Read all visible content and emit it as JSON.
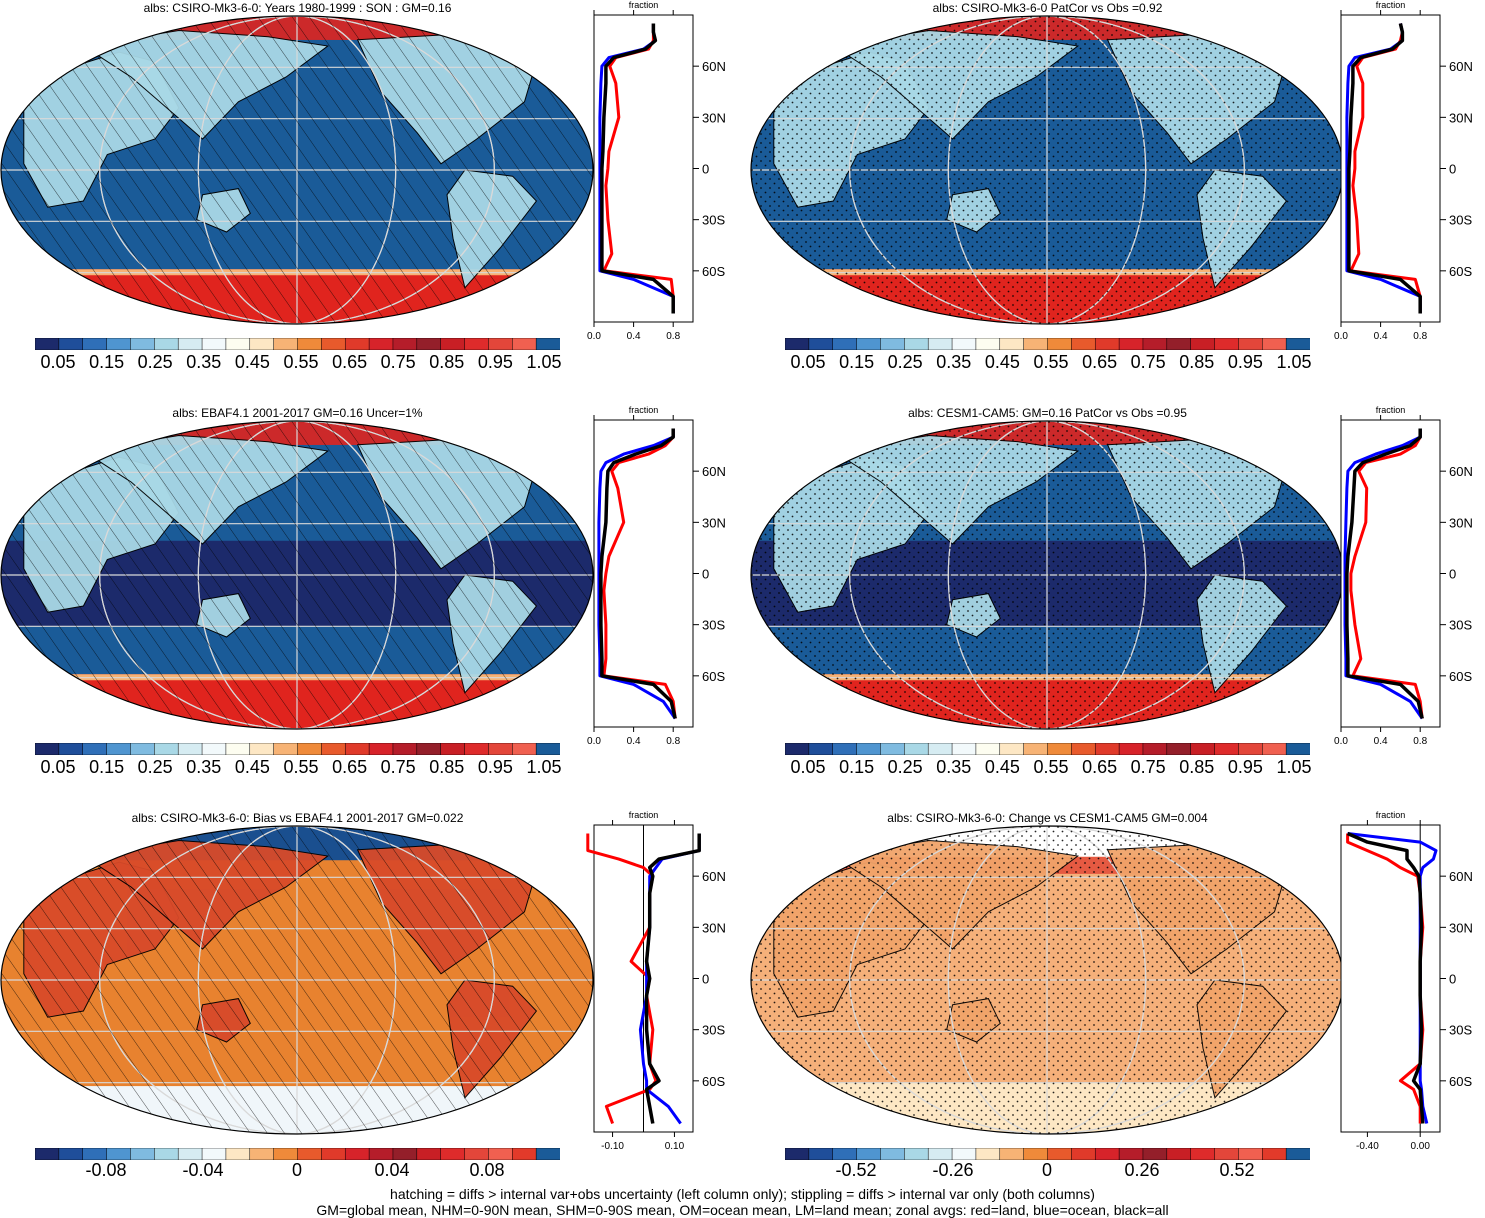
{
  "panels": [
    {
      "title": "albs: CSIRO-Mk3-6-0: Years 1980-1999 : SON : GM=0.16",
      "kind": "abs",
      "pattern": "hatch"
    },
    {
      "title": "albs: CSIRO-Mk3-6-0 PatCor vs Obs =0.92",
      "kind": "abs",
      "pattern": "stipple"
    },
    {
      "title": "albs: EBAF4.1 2001-2017 GM=0.16 Uncer=1%",
      "kind": "abs-obs",
      "pattern": "hatch"
    },
    {
      "title": "albs: CESM1-CAM5: GM=0.16 PatCor vs Obs =0.95",
      "kind": "abs-obs",
      "pattern": "stipple"
    },
    {
      "title": "albs: CSIRO-Mk3-6-0: Bias vs EBAF4.1 2001-2017  GM=0.022",
      "kind": "bias",
      "pattern": "hatch"
    },
    {
      "title": "albs: CSIRO-Mk3-6-0: Change vs CESM1-CAM5 GM=0.004",
      "kind": "change",
      "pattern": "stipple"
    }
  ],
  "colorbars": {
    "abs": {
      "labels": [
        "0.05",
        "0.15",
        "0.25",
        "0.35",
        "0.45",
        "0.55",
        "0.65",
        "0.75",
        "0.85",
        "0.95",
        "1.05"
      ]
    },
    "bias": {
      "labels": [
        "-0.08",
        "-0.04",
        "0",
        "0.04",
        "0.08"
      ]
    },
    "change": {
      "labels": [
        "-0.52",
        "-0.26",
        "0",
        "0.26",
        "0.52"
      ]
    }
  },
  "colors": {
    "abs_palette": [
      "#1c2a6b",
      "#1f4e9a",
      "#2f6fb8",
      "#4f95d0",
      "#7fbbe0",
      "#a9d8e6",
      "#d6ecf2",
      "#f2f9fb",
      "#fdfdf0",
      "#fde7c4",
      "#f7b375",
      "#ef8a3a",
      "#e85a2c",
      "#e03a2a",
      "#d7232a",
      "#b51d2a",
      "#941f2a",
      "#c81f25",
      "#de2b2b",
      "#e3463a",
      "#f06050",
      "#1a5b98"
    ],
    "ocean": "#1a5b98",
    "ocean_deep": "#1c2a6b",
    "land_light": "#a9d8e6",
    "ice": "#e0241e",
    "bias_bg": "#e8822f",
    "change_bg": "#f5b07a",
    "red_curve": "#ff0000",
    "blue_curve": "#0000ff",
    "black_curve": "#000000"
  },
  "zonal": {
    "axis_label": "fraction",
    "lat_ticks": [
      "60N",
      "30N",
      "0",
      "30S",
      "60S"
    ],
    "abs_x_ticks": [
      "0.0",
      "0.4",
      "0.8"
    ],
    "bias_x_ticks": [
      "-0.10",
      "0.10"
    ],
    "change_x_ticks": [
      "-0.40",
      "0.00"
    ]
  },
  "chart_data": [
    {
      "type": "line",
      "title": "",
      "xlabel": "fraction",
      "ylabel": "",
      "xlim": [
        0,
        1
      ],
      "ylim": [
        -90,
        90
      ],
      "y": [
        -85,
        -75,
        -65,
        -60,
        -50,
        -30,
        -10,
        0,
        10,
        30,
        50,
        60,
        65,
        70,
        75,
        80,
        85
      ],
      "series": [
        {
          "values": [
            0.8,
            0.8,
            0.78,
            0.1,
            0.18,
            0.14,
            0.12,
            0.14,
            0.15,
            0.25,
            0.22,
            0.16,
            0.22,
            0.55,
            0.6,
            0.6,
            0.6
          ]
        },
        {
          "values": [
            0.8,
            0.8,
            0.4,
            0.06,
            0.06,
            0.06,
            0.06,
            0.06,
            0.06,
            0.06,
            0.07,
            0.08,
            0.15,
            0.5,
            0.62,
            0.6,
            0.6
          ]
        },
        {
          "values": [
            0.8,
            0.8,
            0.6,
            0.08,
            0.08,
            0.08,
            0.08,
            0.08,
            0.09,
            0.1,
            0.12,
            0.12,
            0.2,
            0.52,
            0.62,
            0.6,
            0.6
          ]
        }
      ]
    },
    {
      "type": "line",
      "title": "",
      "xlabel": "fraction",
      "ylabel": "",
      "xlim": [
        0,
        1
      ],
      "ylim": [
        -90,
        90
      ],
      "y": [
        -85,
        -75,
        -65,
        -60,
        -50,
        -30,
        -10,
        0,
        10,
        30,
        50,
        60,
        65,
        70,
        75,
        80,
        85
      ],
      "series": [
        {
          "values": [
            0.8,
            0.8,
            0.75,
            0.1,
            0.18,
            0.16,
            0.12,
            0.14,
            0.14,
            0.22,
            0.22,
            0.16,
            0.22,
            0.55,
            0.6,
            0.62,
            0.6
          ]
        },
        {
          "values": [
            0.8,
            0.8,
            0.4,
            0.06,
            0.06,
            0.06,
            0.06,
            0.06,
            0.06,
            0.06,
            0.07,
            0.08,
            0.14,
            0.5,
            0.62,
            0.62,
            0.6
          ]
        },
        {
          "values": [
            0.8,
            0.8,
            0.6,
            0.08,
            0.08,
            0.08,
            0.08,
            0.08,
            0.09,
            0.1,
            0.12,
            0.12,
            0.2,
            0.52,
            0.62,
            0.62,
            0.6
          ]
        }
      ]
    },
    {
      "type": "line",
      "title": "",
      "xlabel": "fraction",
      "ylabel": "",
      "xlim": [
        0,
        1
      ],
      "ylim": [
        -90,
        90
      ],
      "y": [
        -85,
        -75,
        -65,
        -60,
        -50,
        -30,
        -10,
        0,
        10,
        30,
        50,
        60,
        65,
        70,
        75,
        80,
        85
      ],
      "series": [
        {
          "values": [
            0.82,
            0.8,
            0.72,
            0.1,
            0.12,
            0.12,
            0.1,
            0.12,
            0.15,
            0.3,
            0.24,
            0.18,
            0.25,
            0.55,
            0.72,
            0.8,
            0.8
          ]
        },
        {
          "values": [
            0.82,
            0.7,
            0.4,
            0.06,
            0.06,
            0.05,
            0.05,
            0.05,
            0.05,
            0.05,
            0.06,
            0.07,
            0.12,
            0.3,
            0.6,
            0.8,
            0.8
          ]
        },
        {
          "values": [
            0.82,
            0.78,
            0.6,
            0.08,
            0.08,
            0.07,
            0.07,
            0.07,
            0.08,
            0.12,
            0.13,
            0.14,
            0.2,
            0.42,
            0.68,
            0.8,
            0.8
          ]
        }
      ]
    },
    {
      "type": "line",
      "title": "",
      "xlabel": "fraction",
      "ylabel": "",
      "xlim": [
        0,
        1
      ],
      "ylim": [
        -90,
        90
      ],
      "y": [
        -85,
        -75,
        -65,
        -60,
        -50,
        -30,
        -10,
        0,
        10,
        30,
        50,
        60,
        65,
        70,
        75,
        80,
        85
      ],
      "series": [
        {
          "values": [
            0.82,
            0.8,
            0.75,
            0.12,
            0.2,
            0.14,
            0.1,
            0.1,
            0.14,
            0.25,
            0.26,
            0.18,
            0.25,
            0.6,
            0.75,
            0.8,
            0.8
          ]
        },
        {
          "values": [
            0.82,
            0.7,
            0.4,
            0.05,
            0.05,
            0.04,
            0.04,
            0.04,
            0.04,
            0.05,
            0.06,
            0.07,
            0.14,
            0.35,
            0.62,
            0.8,
            0.8
          ]
        },
        {
          "values": [
            0.82,
            0.78,
            0.6,
            0.07,
            0.07,
            0.06,
            0.06,
            0.06,
            0.07,
            0.11,
            0.13,
            0.14,
            0.22,
            0.45,
            0.7,
            0.8,
            0.8
          ]
        }
      ]
    },
    {
      "type": "line",
      "title": "",
      "xlabel": "fraction",
      "ylabel": "",
      "xlim": [
        -0.16,
        0.16
      ],
      "ylim": [
        -90,
        90
      ],
      "y": [
        -85,
        -75,
        -65,
        -60,
        -50,
        -30,
        -10,
        0,
        10,
        30,
        50,
        60,
        65,
        70,
        75,
        80,
        85
      ],
      "series": [
        {
          "values": [
            -0.1,
            -0.12,
            0.02,
            0.04,
            0.02,
            0.03,
            0.01,
            0.02,
            -0.04,
            0.02,
            0.02,
            0.03,
            0.0,
            -0.08,
            -0.18,
            -0.18,
            -0.18
          ]
        },
        {
          "values": [
            0.12,
            0.08,
            0.01,
            0.01,
            0.0,
            -0.01,
            0.01,
            0.01,
            0.01,
            0.02,
            0.02,
            0.02,
            0.04,
            0.06,
            0.18,
            0.18,
            0.18
          ]
        },
        {
          "values": [
            0.03,
            0.02,
            0.01,
            0.05,
            0.02,
            0.01,
            0.01,
            0.02,
            0.01,
            0.02,
            0.02,
            0.03,
            0.02,
            0.05,
            0.18,
            0.18,
            0.18
          ]
        }
      ]
    },
    {
      "type": "line",
      "title": "",
      "xlabel": "fraction",
      "ylabel": "",
      "xlim": [
        -0.6,
        0.15
      ],
      "ylim": [
        -90,
        90
      ],
      "y": [
        -85,
        -75,
        -65,
        -60,
        -50,
        -30,
        -10,
        0,
        10,
        30,
        50,
        60,
        65,
        70,
        75,
        80,
        85
      ],
      "series": [
        {
          "values": [
            0.0,
            0.0,
            -0.05,
            -0.15,
            0.0,
            0.02,
            0.0,
            0.0,
            0.0,
            0.02,
            0.0,
            -0.02,
            -0.15,
            -0.25,
            -0.4,
            -0.55,
            -0.55
          ]
        },
        {
          "values": [
            0.05,
            0.02,
            0.01,
            0.0,
            0.0,
            0.0,
            0.0,
            0.0,
            0.0,
            0.0,
            0.0,
            0.0,
            0.02,
            0.1,
            0.12,
            0.0,
            -0.55
          ]
        },
        {
          "values": [
            0.02,
            0.01,
            0.0,
            -0.05,
            0.0,
            0.01,
            0.0,
            0.0,
            0.0,
            0.01,
            0.0,
            -0.01,
            -0.05,
            -0.1,
            -0.1,
            -0.4,
            -0.55
          ]
        }
      ]
    }
  ],
  "footer": {
    "line1": "hatching = diffs > internal var+obs uncertainty (left column only); stippling = diffs > internal var only (both columns)",
    "line2": "GM=global mean, NHM=0-90N mean, SHM=0-90S mean, OM=ocean mean, LM=land mean; zonal avgs: red=land, blue=ocean, black=all"
  }
}
